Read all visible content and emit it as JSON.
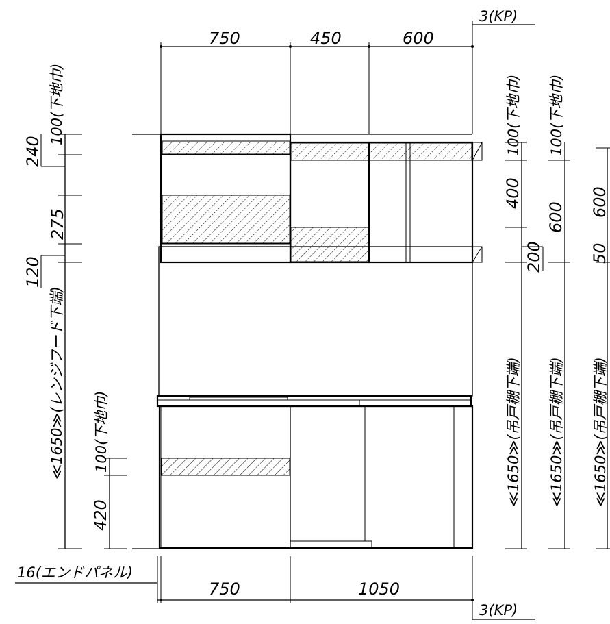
{
  "top_widths": [
    "750",
    "450",
    "600"
  ],
  "bottom_widths": [
    "750",
    "1050"
  ],
  "end_panel": "16(エンドパネル)",
  "kp_top": "3(KP)",
  "kp_bottom": "3(KP)",
  "left": {
    "d240": "240",
    "d100_base": "100(下地巾)",
    "d275": "275",
    "d120": "120",
    "d1650_range": "≪1650≫(レンジフード下端)",
    "d100_base_lower": "100(下地巾)",
    "d420": "420"
  },
  "right1": {
    "d100_base": "100(下地巾)",
    "d400": "400",
    "d200": "200",
    "d1650": "≪1650≫(吊戸棚下端)"
  },
  "right2": {
    "d100_base": "100(下地巾)",
    "d600": "600",
    "d1650": "≪1650≫(吊戸棚下端)"
  },
  "right3": {
    "d600": "600",
    "d50": "50",
    "d1650": "≪1650≫(吊戸棚下端)"
  }
}
